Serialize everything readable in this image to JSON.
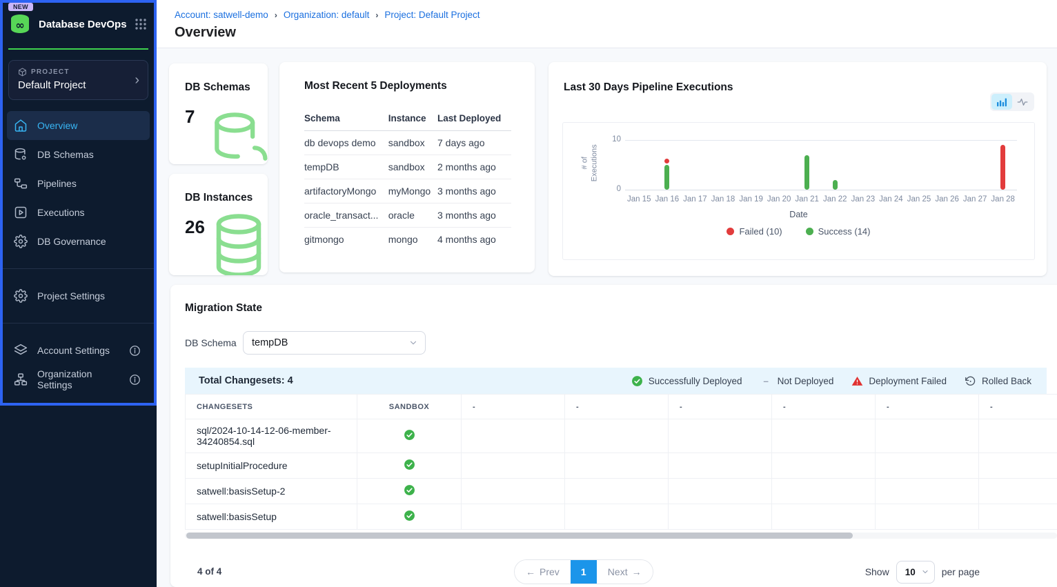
{
  "colors": {
    "sidebar_bg": "#0d1b2e",
    "sidebar_outline": "#2d63f2",
    "brand_green": "#57d657",
    "active_nav": "#38b6f5",
    "link_blue": "#1a6fdf",
    "success_green": "#43b049",
    "failed_red": "#e23c3c",
    "pagination_active": "#1b95ea",
    "total_bar_bg": "#e8f5fd"
  },
  "sidebar": {
    "badge": "NEW",
    "app_title": "Database DevOps",
    "project_label": "PROJECT",
    "project_name": "Default Project",
    "nav": [
      {
        "label": "Overview",
        "icon": "home",
        "active": true
      },
      {
        "label": "DB Schemas",
        "icon": "database"
      },
      {
        "label": "Pipelines",
        "icon": "pipeline"
      },
      {
        "label": "Executions",
        "icon": "play-square"
      },
      {
        "label": "DB Governance",
        "icon": "gear"
      }
    ],
    "secondary": [
      {
        "label": "Project Settings",
        "icon": "gear"
      }
    ],
    "tertiary": [
      {
        "label": "Account Settings",
        "icon": "layers",
        "info": true
      },
      {
        "label": "Organization Settings",
        "icon": "org-chart",
        "info": true
      }
    ]
  },
  "breadcrumb": [
    "Account: satwell-demo",
    "Organization: default",
    "Project: Default Project"
  ],
  "page_title": "Overview",
  "stats": [
    {
      "label": "DB Schemas",
      "value": "7",
      "icon": "database-single"
    },
    {
      "label": "DB Instances",
      "value": "26",
      "icon": "database-stack"
    }
  ],
  "deployments": {
    "title": "Most Recent 5 Deployments",
    "columns": [
      "Schema",
      "Instance",
      "Last Deployed"
    ],
    "rows": [
      {
        "schema": "db devops demo",
        "instance": "sandbox",
        "last_deployed": "7 days ago"
      },
      {
        "schema": "tempDB",
        "instance": "sandbox",
        "last_deployed": "2 months ago"
      },
      {
        "schema": "artifactoryMongo",
        "instance": "myMongo",
        "last_deployed": "3 months ago"
      },
      {
        "schema": "oracle_transact...",
        "instance": "oracle",
        "last_deployed": "3 months ago"
      },
      {
        "schema": "gitmongo",
        "instance": "mongo",
        "last_deployed": "4 months ago"
      }
    ]
  },
  "chart_card": {
    "title": "Last 30 Days Pipeline Executions"
  },
  "chart_data": {
    "type": "bar",
    "title": "Last 30 Days Pipeline Executions",
    "x": [
      "Jan 15",
      "Jan 16",
      "Jan 17",
      "Jan 18",
      "Jan 19",
      "Jan 20",
      "Jan 21",
      "Jan 22",
      "Jan 23",
      "Jan 24",
      "Jan 25",
      "Jan 26",
      "Jan 27",
      "Jan 28"
    ],
    "series": [
      {
        "name": "Success",
        "color": "#4caf50",
        "values": [
          0,
          5,
          0,
          0,
          0,
          0,
          7,
          2,
          0,
          0,
          0,
          0,
          0,
          0
        ]
      },
      {
        "name": "Failed",
        "color": "#e23c3c",
        "values": [
          0,
          1,
          0,
          0,
          0,
          0,
          0,
          0,
          0,
          0,
          0,
          0,
          0,
          9
        ]
      }
    ],
    "stacked": true,
    "xlabel": "Date",
    "ylabel": "# of\nExecutions",
    "ylim": [
      0,
      10
    ],
    "yticks": [
      0,
      10
    ],
    "grid": "y-ticks-only",
    "legend_position": "bottom",
    "legend": [
      {
        "label": "Failed (10)",
        "color": "#e23c3c"
      },
      {
        "label": "Success (14)",
        "color": "#4caf50"
      }
    ]
  },
  "migration": {
    "title": "Migration State",
    "schema_label": "DB Schema",
    "schema_value": "tempDB",
    "total_label": "Total Changesets: 4",
    "status_legend": [
      {
        "label": "Successfully Deployed",
        "icon": "check-circle"
      },
      {
        "label": "Not Deployed",
        "icon": "dash"
      },
      {
        "label": "Deployment Failed",
        "icon": "warning-triangle"
      },
      {
        "label": "Rolled Back",
        "icon": "rollback"
      }
    ],
    "table": {
      "columns": [
        "CHANGESETS",
        "SANDBOX",
        "-",
        "-",
        "-",
        "-",
        "-",
        "-"
      ],
      "rows": [
        {
          "changeset": "sql/2024-10-14-12-06-member-34240854.sql",
          "sandbox": "deployed"
        },
        {
          "changeset": "setupInitialProcedure",
          "sandbox": "deployed"
        },
        {
          "changeset": "satwell:basisSetup-2",
          "sandbox": "deployed"
        },
        {
          "changeset": "satwell:basisSetup",
          "sandbox": "deployed"
        }
      ]
    },
    "pagination": {
      "count": "4 of 4",
      "prev": "Prev",
      "page": "1",
      "next": "Next",
      "show_label": "Show",
      "page_size": "10",
      "per_page_label": "per page"
    }
  }
}
